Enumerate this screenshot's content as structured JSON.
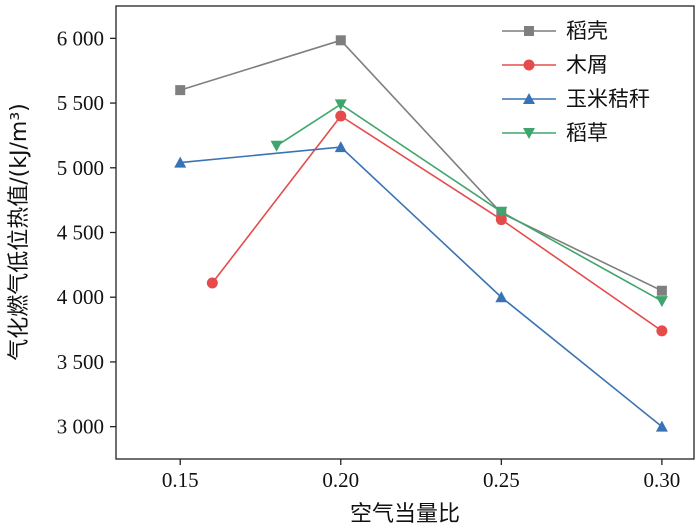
{
  "chart_data": {
    "type": "line",
    "title": "",
    "xlabel": "空气当量比",
    "ylabel": "气化燃气低位热值/(kJ/m³)",
    "xlim": [
      0.13,
      0.31
    ],
    "ylim": [
      2750,
      6250
    ],
    "x_ticks": [
      0.15,
      0.2,
      0.25,
      0.3
    ],
    "x_tick_labels": [
      "0.15",
      "0.20",
      "0.25",
      "0.30"
    ],
    "y_ticks": [
      3000,
      3500,
      4000,
      4500,
      5000,
      5500,
      6000
    ],
    "y_tick_labels": [
      "3 000",
      "3 500",
      "4 000",
      "4 500",
      "5 000",
      "5 500",
      "6 000"
    ],
    "grid": false,
    "legend_position": "top-right",
    "series": [
      {
        "name": "稻壳",
        "color": "#7f7f7f",
        "marker": "square",
        "x": [
          0.15,
          0.2,
          0.25,
          0.3
        ],
        "values": [
          5600,
          5985,
          4650,
          4050
        ]
      },
      {
        "name": "木屑",
        "color": "#e64b4b",
        "marker": "circle",
        "x": [
          0.16,
          0.2,
          0.25,
          0.3
        ],
        "values": [
          4110,
          5400,
          4600,
          3740
        ]
      },
      {
        "name": "玉米秸秆",
        "color": "#3a73b5",
        "marker": "triangle-up",
        "x": [
          0.15,
          0.2,
          0.25,
          0.3
        ],
        "values": [
          5040,
          5160,
          4000,
          3000
        ]
      },
      {
        "name": "稻草",
        "color": "#3ea66c",
        "marker": "triangle-down",
        "x": [
          0.18,
          0.2,
          0.25,
          0.3
        ],
        "values": [
          5170,
          5490,
          4660,
          3970
        ]
      }
    ]
  }
}
